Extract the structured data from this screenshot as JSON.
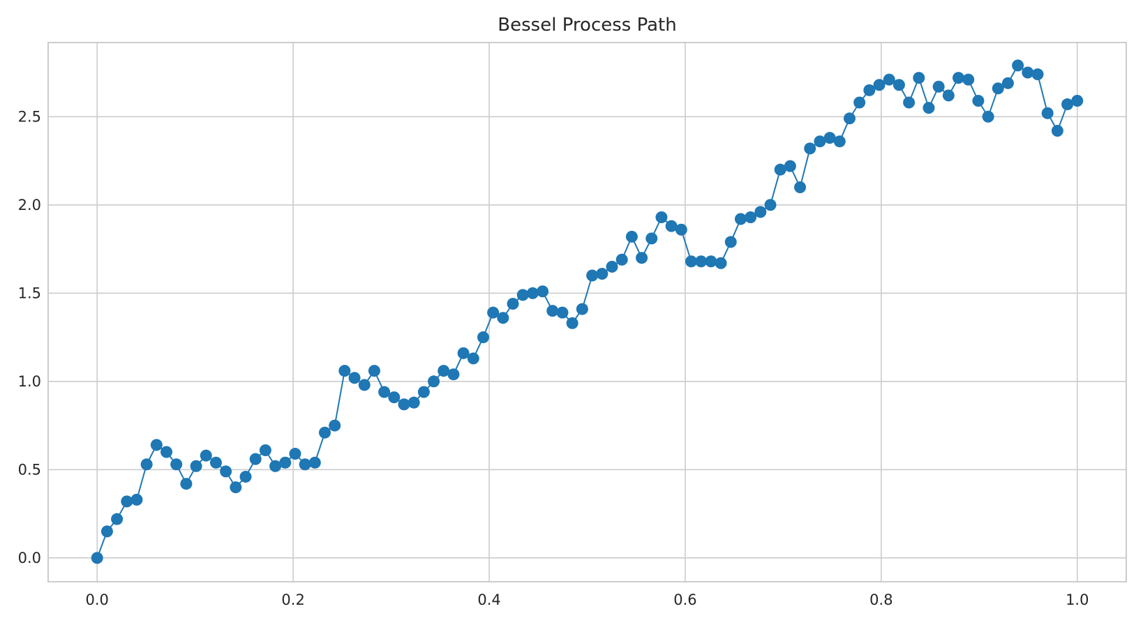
{
  "chart_data": {
    "type": "line",
    "title": "Bessel Process Path",
    "xlabel": "",
    "ylabel": "",
    "xlim": [
      -0.05,
      1.05
    ],
    "ylim": [
      -0.135,
      2.92
    ],
    "grid": true,
    "marker": "circle",
    "x_ticks": [
      0.0,
      0.2,
      0.4,
      0.6,
      0.8,
      1.0
    ],
    "x_tick_labels": [
      "0.0",
      "0.2",
      "0.4",
      "0.6",
      "0.8",
      "1.0"
    ],
    "y_ticks": [
      0.0,
      0.5,
      1.0,
      1.5,
      2.0,
      2.5
    ],
    "y_tick_labels": [
      "0.0",
      "0.5",
      "1.0",
      "1.5",
      "2.0",
      "2.5"
    ],
    "series_color": "#1f77b4",
    "x": [
      0.0,
      0.0101,
      0.0202,
      0.0303,
      0.0404,
      0.0505,
      0.0606,
      0.0707,
      0.0808,
      0.0909,
      0.101,
      0.1111,
      0.1212,
      0.1313,
      0.1414,
      0.1515,
      0.1616,
      0.1717,
      0.1818,
      0.1919,
      0.202,
      0.2121,
      0.2222,
      0.2323,
      0.2424,
      0.2525,
      0.2626,
      0.2727,
      0.2828,
      0.2929,
      0.303,
      0.3131,
      0.3232,
      0.3333,
      0.3434,
      0.3535,
      0.3636,
      0.3737,
      0.3838,
      0.3939,
      0.404,
      0.4141,
      0.4242,
      0.4343,
      0.4444,
      0.4545,
      0.4646,
      0.4747,
      0.4848,
      0.4949,
      0.5051,
      0.5152,
      0.5253,
      0.5354,
      0.5455,
      0.5556,
      0.5657,
      0.5758,
      0.5859,
      0.596,
      0.6061,
      0.6162,
      0.6263,
      0.6364,
      0.6465,
      0.6566,
      0.6667,
      0.6768,
      0.6869,
      0.697,
      0.7071,
      0.7172,
      0.7273,
      0.7374,
      0.7475,
      0.7576,
      0.7677,
      0.7778,
      0.7879,
      0.798,
      0.8081,
      0.8182,
      0.8283,
      0.8384,
      0.8485,
      0.8586,
      0.8687,
      0.8788,
      0.8889,
      0.899,
      0.9091,
      0.9192,
      0.9293,
      0.9394,
      0.9495,
      0.9596,
      0.9697,
      0.9798,
      0.9899,
      1.0
    ],
    "y": [
      0.0,
      0.15,
      0.22,
      0.32,
      0.33,
      0.53,
      0.64,
      0.6,
      0.53,
      0.42,
      0.52,
      0.58,
      0.54,
      0.49,
      0.4,
      0.46,
      0.56,
      0.61,
      0.52,
      0.54,
      0.59,
      0.53,
      0.54,
      0.71,
      0.75,
      1.06,
      1.02,
      0.98,
      1.06,
      0.94,
      0.91,
      0.87,
      0.88,
      0.94,
      1.0,
      1.06,
      1.04,
      1.16,
      1.13,
      1.25,
      1.39,
      1.36,
      1.44,
      1.49,
      1.5,
      1.51,
      1.4,
      1.39,
      1.33,
      1.41,
      1.6,
      1.61,
      1.65,
      1.69,
      1.82,
      1.7,
      1.81,
      1.93,
      1.88,
      1.86,
      1.68,
      1.68,
      1.68,
      1.67,
      1.79,
      1.92,
      1.93,
      1.96,
      2.0,
      2.2,
      2.22,
      2.1,
      2.32,
      2.36,
      2.38,
      2.36,
      2.49,
      2.58,
      2.65,
      2.68,
      2.71,
      2.68,
      2.58,
      2.72,
      2.55,
      2.67,
      2.62,
      2.72,
      2.71,
      2.59,
      2.5,
      2.66,
      2.69,
      2.79,
      2.75,
      2.74,
      2.52,
      2.42,
      2.57,
      2.59
    ]
  }
}
